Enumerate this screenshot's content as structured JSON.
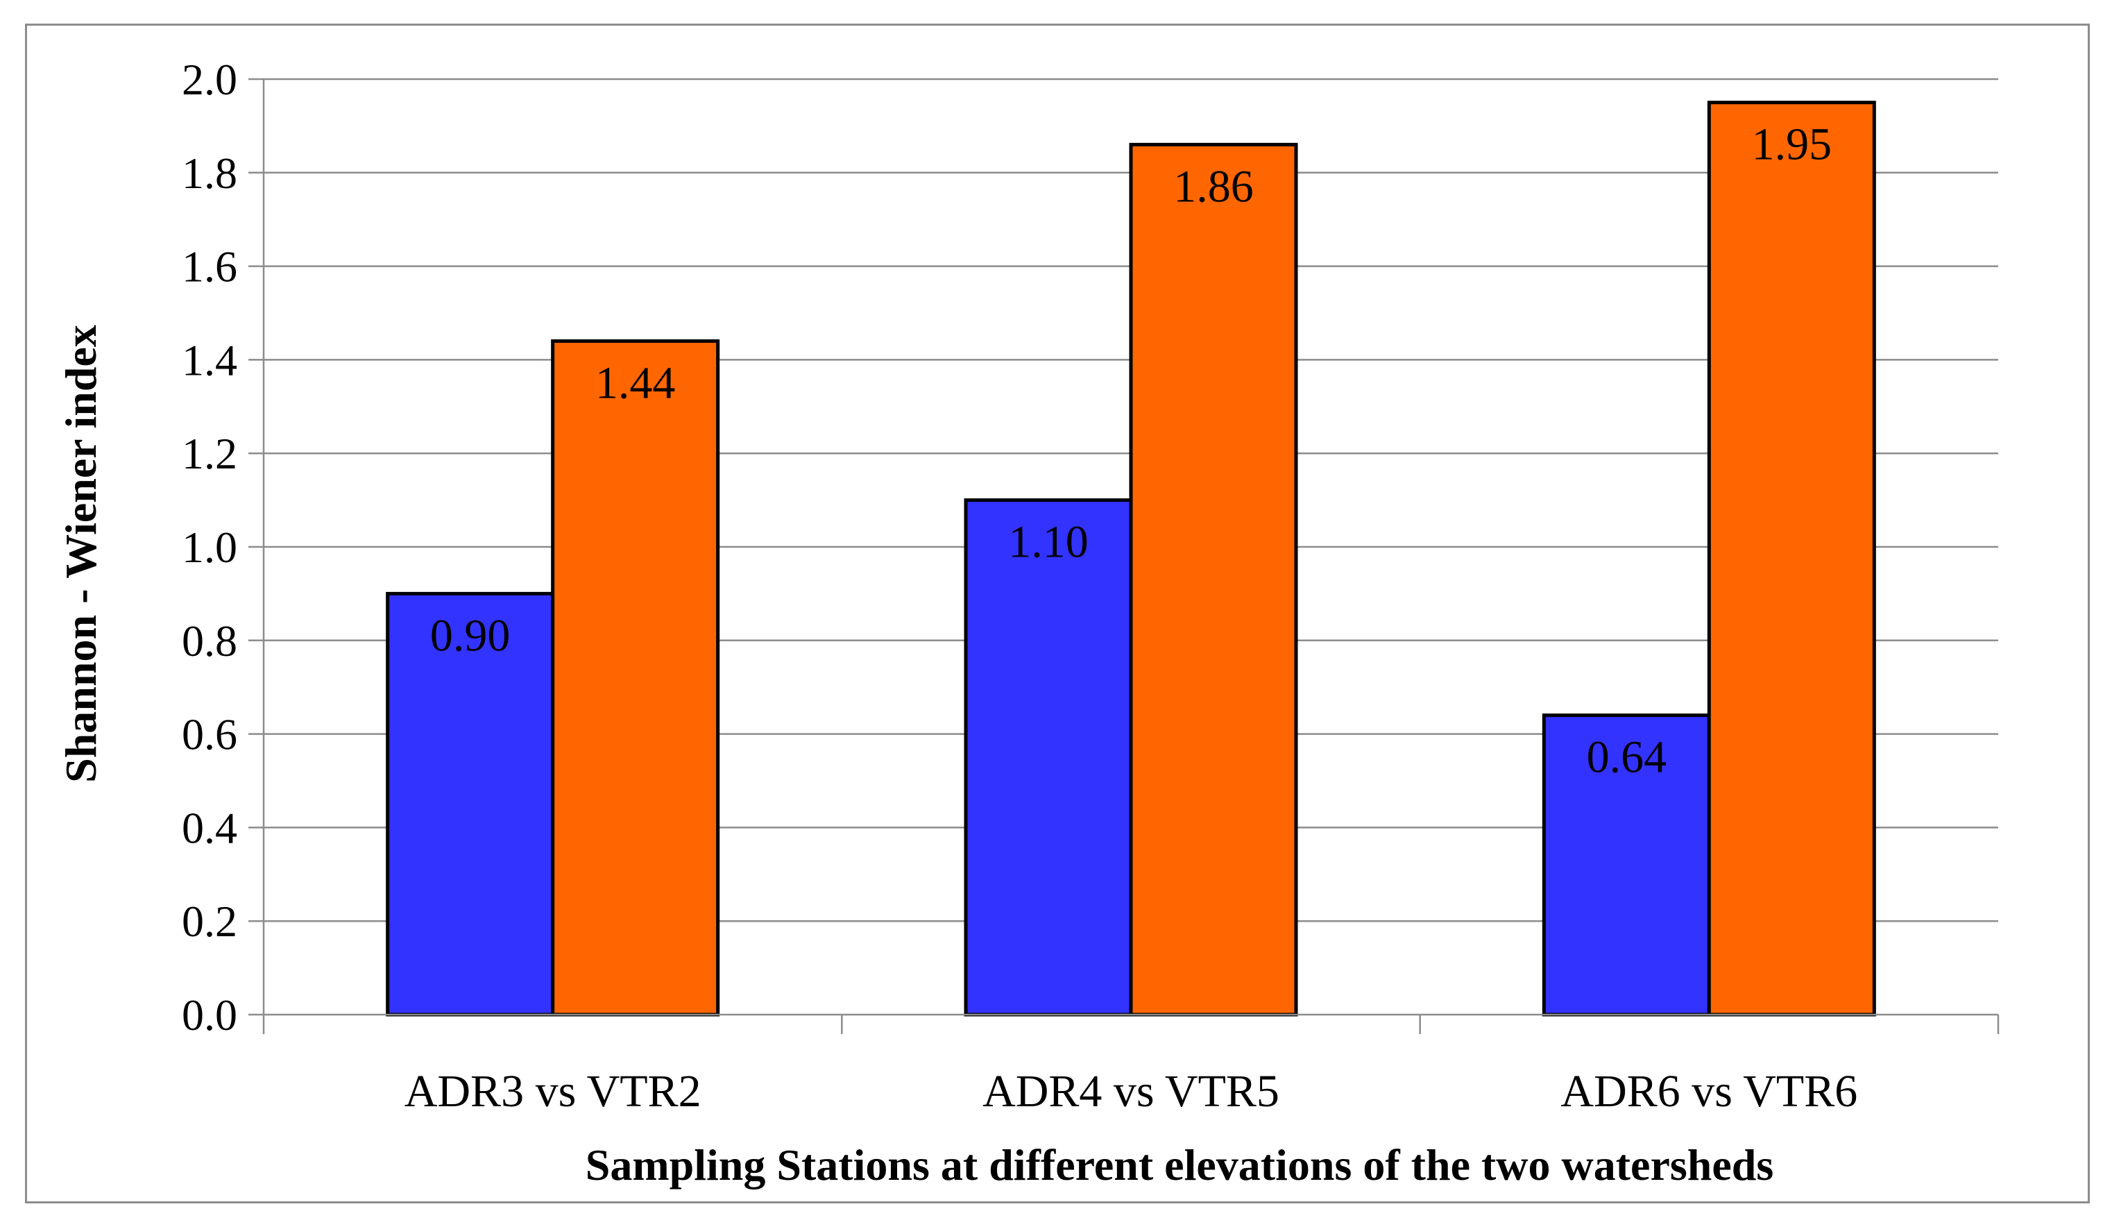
{
  "chart_data": {
    "type": "bar",
    "title": "",
    "xlabel": "Sampling Stations at different elevations of the two watersheds",
    "ylabel": "Shannon - Wiener index",
    "ylim": [
      0,
      2.0
    ],
    "yticks": [
      0.0,
      0.2,
      0.4,
      0.6,
      0.8,
      1.0,
      1.2,
      1.4,
      1.6,
      1.8,
      2.0
    ],
    "ytick_labels": [
      "0.0",
      "0.2",
      "0.4",
      "0.6",
      "0.8",
      "1.0",
      "1.2",
      "1.4",
      "1.6",
      "1.8",
      "2.0"
    ],
    "grid": true,
    "legend": "none",
    "categories": [
      "ADR3 vs VTR2",
      "ADR4 vs VTR5",
      "ADR6 vs VTR6"
    ],
    "series": [
      {
        "name": "ADR",
        "color": "#3333ff",
        "values": [
          0.9,
          1.1,
          0.64
        ],
        "labels": [
          "0.90",
          "1.10",
          "0.64"
        ]
      },
      {
        "name": "VTR",
        "color": "#ff6600",
        "values": [
          1.44,
          1.86,
          1.95
        ],
        "labels": [
          "1.44",
          "1.86",
          "1.95"
        ]
      }
    ]
  }
}
